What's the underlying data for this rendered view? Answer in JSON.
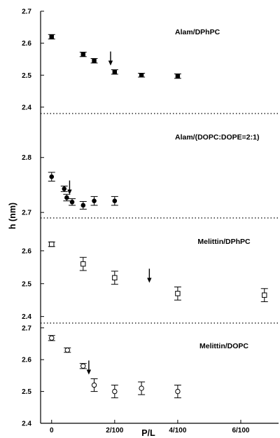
{
  "chart_data": {
    "type": "scatter",
    "xlabel": "P/L",
    "ylabel": "h (nm)",
    "x_ticks": [
      {
        "value": 0,
        "label": "0"
      },
      {
        "value": 0.02,
        "label": "2/100"
      },
      {
        "value": 0.04,
        "label": "4/100"
      },
      {
        "value": 0.06,
        "label": "6/100"
      }
    ],
    "xlim": [
      -0.0035,
      0.072
    ],
    "panels": [
      {
        "title": "Alam/DPhPC",
        "ylim": [
          2.38,
          2.7
        ],
        "y_ticks": [
          "2.7",
          "2.6",
          "2.5",
          "2.4"
        ],
        "marker": "filled-square",
        "points": [
          {
            "x": 0,
            "y": 2.62,
            "err": 0.007
          },
          {
            "x": 0.01,
            "y": 2.565,
            "err": 0.007
          },
          {
            "x": 0.0135,
            "y": 2.545,
            "err": 0.007
          },
          {
            "x": 0.02,
            "y": 2.51,
            "err": 0.007
          },
          {
            "x": 0.0285,
            "y": 2.5,
            "err": 0.006
          },
          {
            "x": 0.04,
            "y": 2.497,
            "err": 0.007
          }
        ],
        "arrow_x": 0.0187
      },
      {
        "title": "Alam/(DOPC:DOPE=2:1)",
        "ylim": [
          2.69,
          2.88
        ],
        "y_ticks": [
          "2.8",
          "2.7"
        ],
        "marker": "filled-circle",
        "points": [
          {
            "x": 0,
            "y": 2.765,
            "err": 0.008
          },
          {
            "x": 0.004,
            "y": 2.743,
            "err": 0.005
          },
          {
            "x": 0.0048,
            "y": 2.727,
            "err": 0.006
          },
          {
            "x": 0.0065,
            "y": 2.719,
            "err": 0.006
          },
          {
            "x": 0.01,
            "y": 2.713,
            "err": 0.007
          },
          {
            "x": 0.0135,
            "y": 2.721,
            "err": 0.008
          },
          {
            "x": 0.02,
            "y": 2.721,
            "err": 0.008
          }
        ],
        "arrow_x": 0.0057
      },
      {
        "title": "Melittin/DPhPC",
        "ylim": [
          2.38,
          2.7
        ],
        "y_ticks": [
          "2.6",
          "2.5",
          "2.4"
        ],
        "marker": "open-square",
        "points": [
          {
            "x": 0,
            "y": 2.62,
            "err": 0.007
          },
          {
            "x": 0.01,
            "y": 2.56,
            "err": 0.02
          },
          {
            "x": 0.02,
            "y": 2.518,
            "err": 0.02
          },
          {
            "x": 0.04,
            "y": 2.47,
            "err": 0.02
          },
          {
            "x": 0.0675,
            "y": 2.465,
            "err": 0.02
          }
        ],
        "arrow_x": 0.031
      },
      {
        "title": "Melittin/DOPC",
        "ylim": [
          2.4,
          2.715
        ],
        "y_ticks": [
          "2.7",
          "2.6",
          "2.5",
          "2.4"
        ],
        "marker": "open-circle",
        "points": [
          {
            "x": 0,
            "y": 2.668,
            "err": 0.008
          },
          {
            "x": 0.005,
            "y": 2.63,
            "err": 0.007
          },
          {
            "x": 0.01,
            "y": 2.58,
            "err": 0.008
          },
          {
            "x": 0.0135,
            "y": 2.52,
            "err": 0.02
          },
          {
            "x": 0.02,
            "y": 2.5,
            "err": 0.02
          },
          {
            "x": 0.0285,
            "y": 2.51,
            "err": 0.02
          },
          {
            "x": 0.04,
            "y": 2.5,
            "err": 0.02
          }
        ],
        "arrow_x": 0.0118
      }
    ]
  }
}
